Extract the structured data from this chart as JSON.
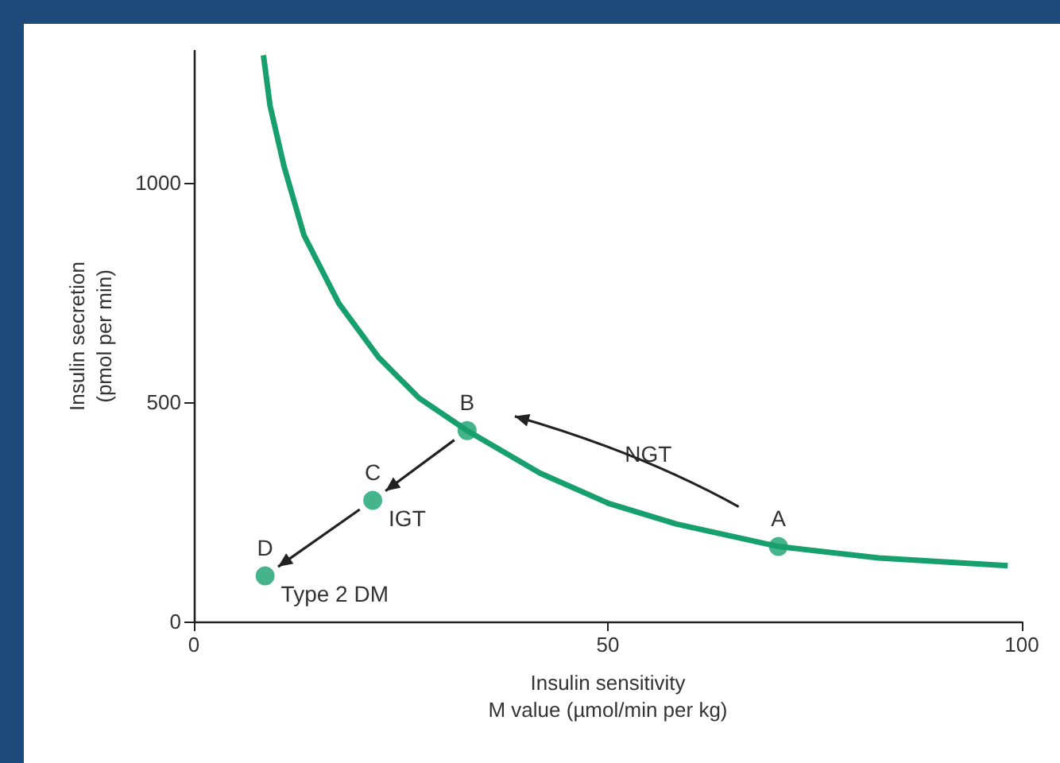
{
  "chart_data": {
    "type": "line",
    "xlabel": "Insulin sensitivity\nM value (µmol/min per kg)",
    "ylabel": "Insulin secretion\n(pmol per min)",
    "xlim": [
      0,
      100
    ],
    "xticks": [
      0,
      50,
      100
    ],
    "ylim": [
      0,
      1300
    ],
    "yticks": [
      0,
      500,
      1000
    ],
    "grid": false,
    "series": [
      {
        "color": "#17a06e",
        "marker": "none",
        "x": [
          8.4,
          9.2,
          10.9,
          13.3,
          17.5,
          22.3,
          27.2,
          33.0,
          41.8,
          50.1,
          58.3,
          70.6,
          82.7,
          98.3
        ],
        "values": [
          1290,
          1175,
          1036,
          880,
          725,
          602,
          509,
          435,
          338,
          269,
          222,
          171,
          145,
          127
        ]
      },
      {
        "type": "scatter",
        "color": "#17a06e",
        "marker": "circle",
        "x": [
          70.6,
          33.0,
          21.6,
          8.6
        ],
        "values": [
          171,
          435,
          276,
          104
        ]
      }
    ],
    "annotations": [
      "A",
      "B",
      "C",
      "D",
      "NGT",
      "IGT",
      "Type 2 DM"
    ]
  }
}
